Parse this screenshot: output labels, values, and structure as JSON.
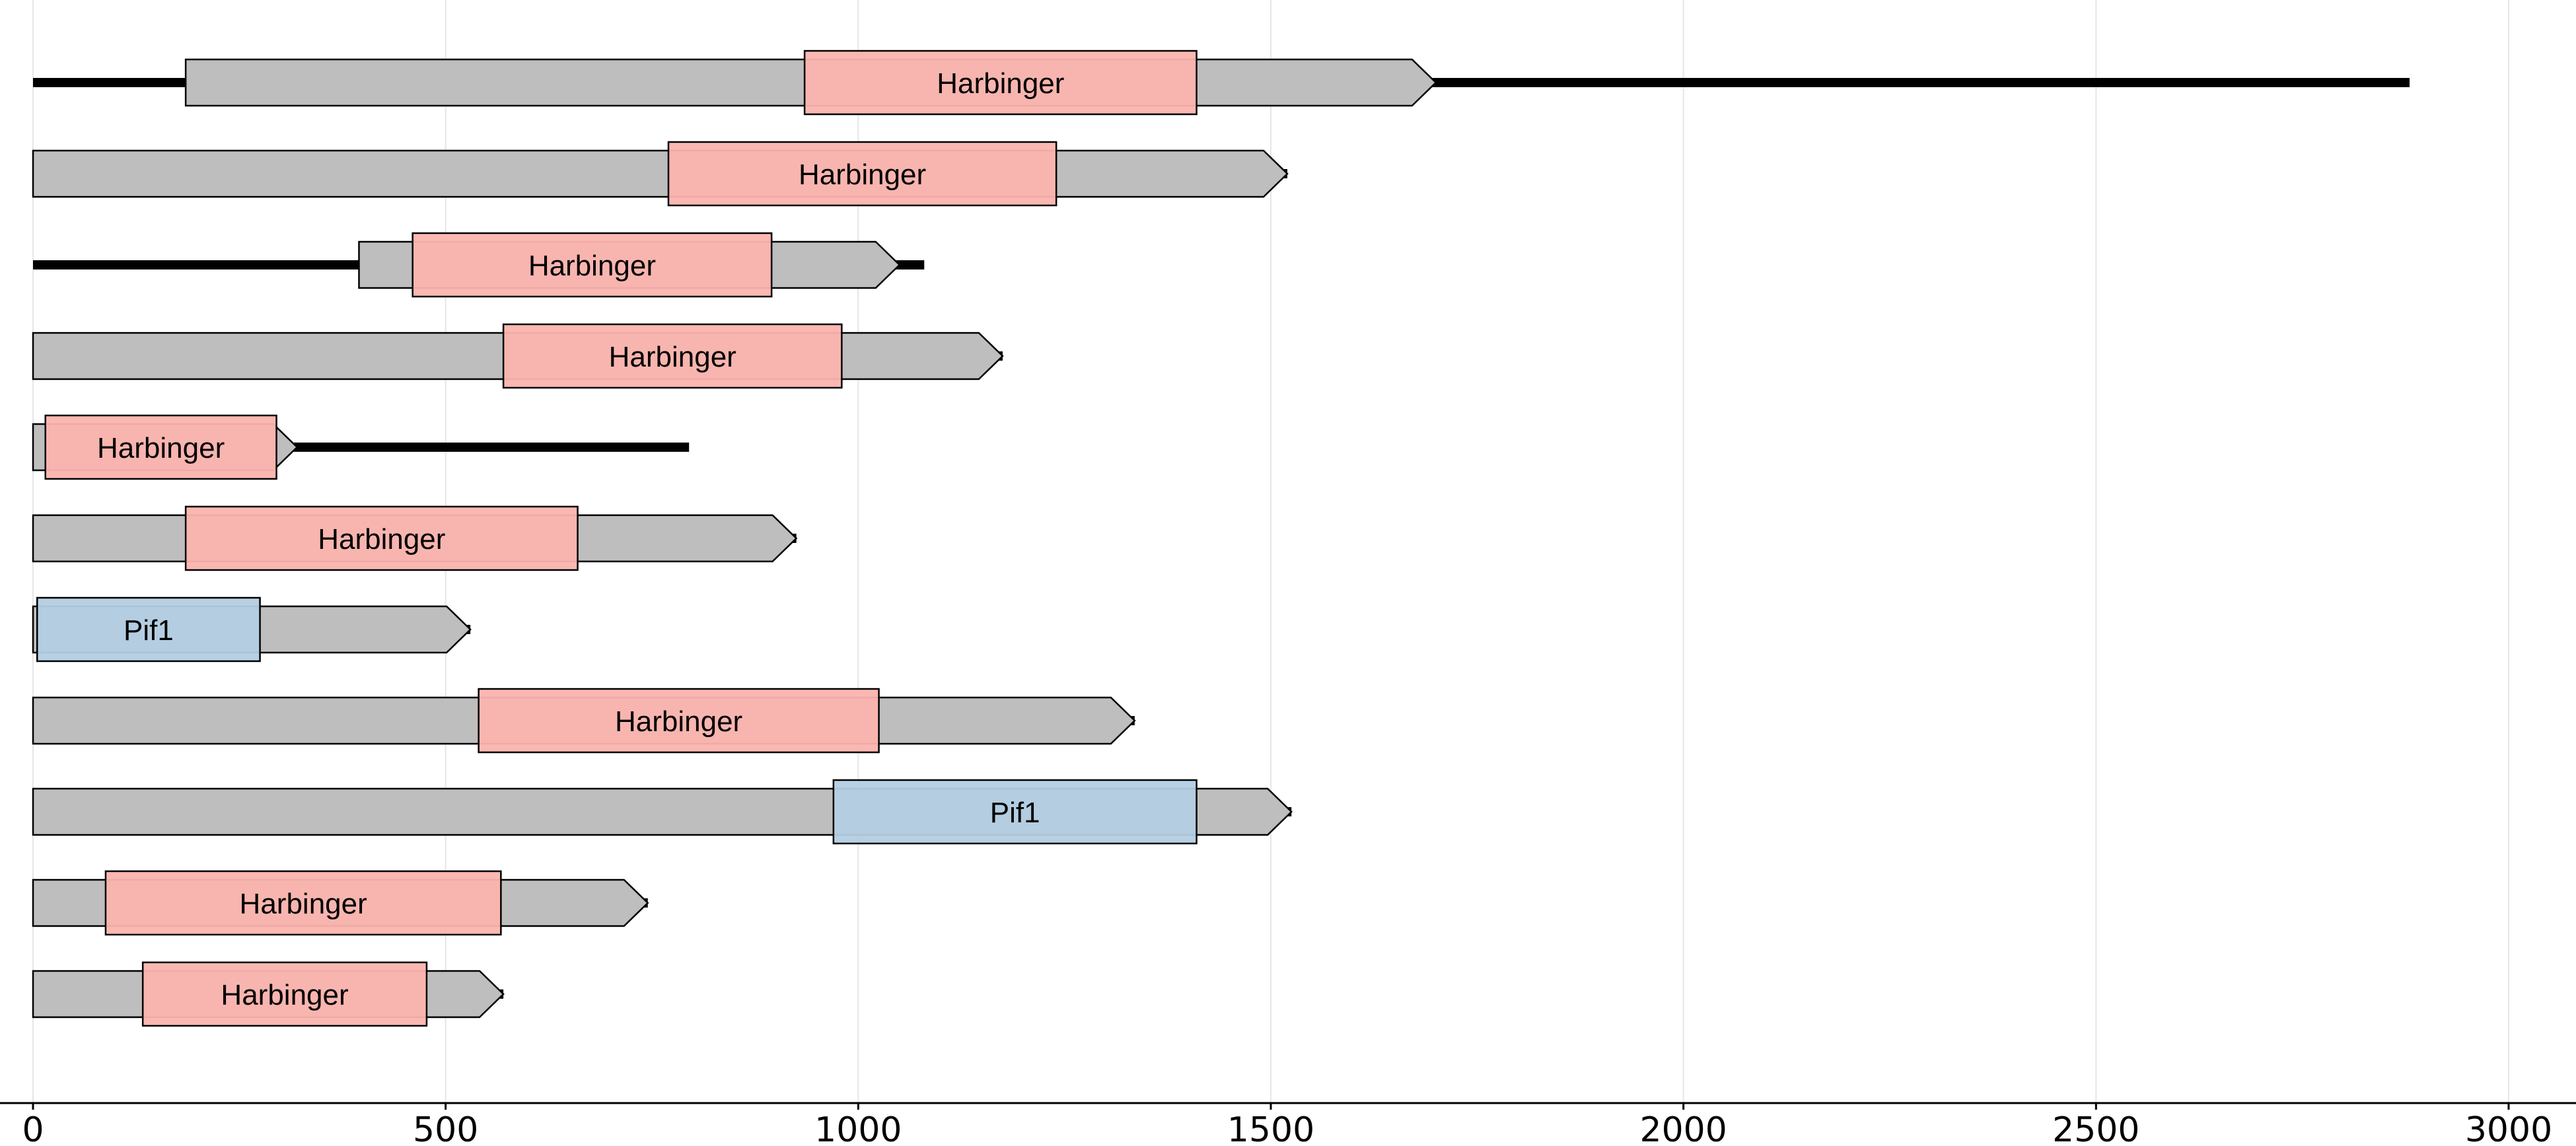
{
  "chart_data": {
    "type": "gene-arrow-map",
    "xlim": [
      0,
      3050
    ],
    "xticks": [
      0,
      500,
      1000,
      1500,
      2000,
      2500,
      3000
    ],
    "grid": "vertical",
    "colors": {
      "gene": "#bebebe",
      "Harbinger": "#fbb4ae",
      "Pif1": "#b3cde3",
      "backbone": "#000000"
    },
    "tracks": [
      {
        "backbone": [
          0,
          2880
        ],
        "gene": {
          "start": 185,
          "end": 1700,
          "strand": "+"
        },
        "domains": [
          {
            "name": "Harbinger",
            "start": 935,
            "end": 1410
          }
        ]
      },
      {
        "backbone": [
          0,
          1520
        ],
        "gene": {
          "start": 0,
          "end": 1520,
          "strand": "+"
        },
        "domains": [
          {
            "name": "Harbinger",
            "start": 770,
            "end": 1240
          }
        ]
      },
      {
        "backbone": [
          0,
          1080
        ],
        "gene": {
          "start": 395,
          "end": 1050,
          "strand": "+"
        },
        "domains": [
          {
            "name": "Harbinger",
            "start": 460,
            "end": 895
          }
        ]
      },
      {
        "backbone": [
          0,
          1175
        ],
        "gene": {
          "start": 0,
          "end": 1175,
          "strand": "+"
        },
        "domains": [
          {
            "name": "Harbinger",
            "start": 570,
            "end": 980
          }
        ]
      },
      {
        "backbone": [
          0,
          795
        ],
        "gene": {
          "start": 0,
          "end": 320,
          "strand": "+"
        },
        "domains": [
          {
            "name": "Harbinger",
            "start": 15,
            "end": 295
          }
        ]
      },
      {
        "backbone": [
          0,
          925
        ],
        "gene": {
          "start": 0,
          "end": 925,
          "strand": "+"
        },
        "domains": [
          {
            "name": "Harbinger",
            "start": 185,
            "end": 660
          }
        ]
      },
      {
        "backbone": [
          0,
          530
        ],
        "gene": {
          "start": 0,
          "end": 530,
          "strand": "+"
        },
        "domains": [
          {
            "name": "Pif1",
            "start": 5,
            "end": 275
          }
        ]
      },
      {
        "backbone": [
          0,
          1335
        ],
        "gene": {
          "start": 0,
          "end": 1335,
          "strand": "+"
        },
        "domains": [
          {
            "name": "Harbinger",
            "start": 540,
            "end": 1025
          }
        ]
      },
      {
        "backbone": [
          0,
          1525
        ],
        "gene": {
          "start": 0,
          "end": 1525,
          "strand": "+"
        },
        "domains": [
          {
            "name": "Pif1",
            "start": 970,
            "end": 1410
          }
        ]
      },
      {
        "backbone": [
          0,
          745
        ],
        "gene": {
          "start": 0,
          "end": 745,
          "strand": "+"
        },
        "domains": [
          {
            "name": "Harbinger",
            "start": 88,
            "end": 567
          }
        ]
      },
      {
        "backbone": [
          0,
          570
        ],
        "gene": {
          "start": 0,
          "end": 570,
          "strand": "+"
        },
        "domains": [
          {
            "name": "Harbinger",
            "start": 133,
            "end": 477
          }
        ]
      }
    ]
  }
}
